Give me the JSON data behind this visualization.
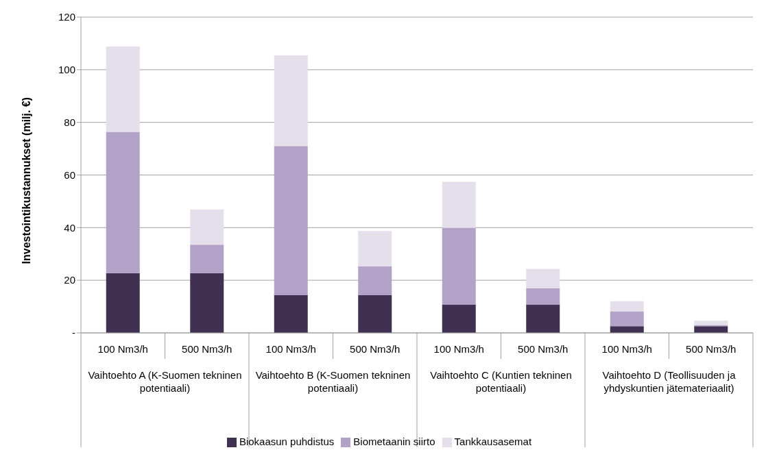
{
  "chart_data": {
    "type": "bar",
    "stacked": true,
    "ylabel": "Investointikustannukset (milj. €)",
    "categories": [
      "100 Nm3/h",
      "500 Nm3/h",
      "100 Nm3/h",
      "500 Nm3/h",
      "100 Nm3/h",
      "500 Nm3/h",
      "100 Nm3/h",
      "500 Nm3/h"
    ],
    "annotations": [
      "Vaihtoehto A (K-Suomen tekninen potentiaali)",
      "Vaihtoehto B (K-Suomen tekninen potentiaali)",
      "Vaihtoehto C (Kuntien tekninen potentiaali)",
      "Vaihtoehto D (Teollisuuden ja yhdyskuntien jätemateriaalit)"
    ],
    "series": [
      {
        "name": "Biokaasun puhdistus",
        "color": "#403152",
        "values": [
          22.7,
          22.7,
          14.3,
          14.3,
          10.8,
          10.8,
          2.5,
          2.5
        ]
      },
      {
        "name": "Biometaanin siirto",
        "color": "#b3a2c7",
        "values": [
          53.7,
          10.8,
          56.7,
          11.0,
          29.1,
          6.1,
          5.7,
          0.5
        ]
      },
      {
        "name": "Tankkausasemat",
        "color": "#e5dfec",
        "values": [
          32.5,
          13.4,
          34.5,
          13.4,
          17.5,
          7.4,
          3.8,
          1.6
        ]
      }
    ],
    "ylim": [
      0,
      120
    ],
    "yticks": [
      {
        "value": 0,
        "label": "-"
      },
      20,
      40,
      60,
      80,
      100,
      120
    ],
    "grid": "y",
    "legend": "bottom"
  }
}
